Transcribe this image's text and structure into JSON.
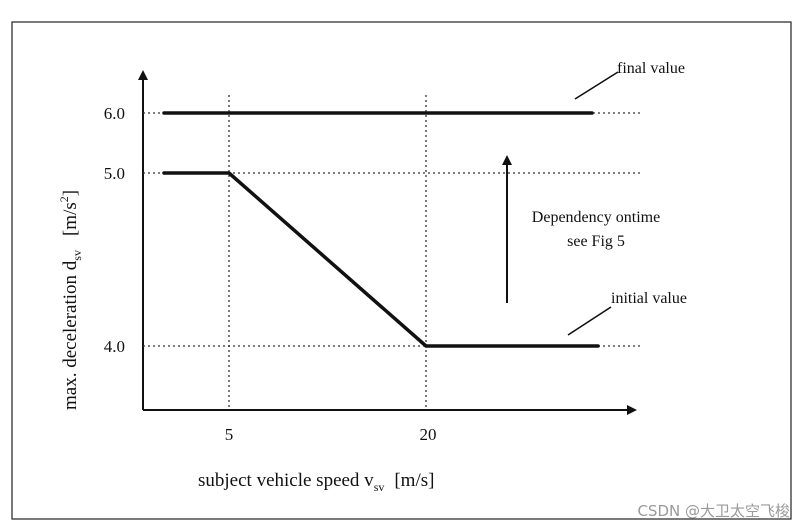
{
  "diagram": {
    "y_axis_label": "max. deceleration  d",
    "y_axis_label_sub": "sv",
    "y_axis_unit": "[m/s",
    "y_axis_unit_sup": "2",
    "y_axis_unit_close": "]",
    "x_axis_label": "subject vehicle speed v",
    "x_axis_label_sub": "sv",
    "x_axis_unit": "[m/s]",
    "y_ticks": [
      "6.0",
      "5.0",
      "4.0"
    ],
    "x_ticks": [
      "5",
      "20"
    ],
    "annotation_final": "final value",
    "annotation_initial": "initial value",
    "dependency_line1": "Dependency ontime",
    "dependency_line2": "see Fig 5"
  },
  "watermark": "CSDN @大卫太空飞梭"
}
